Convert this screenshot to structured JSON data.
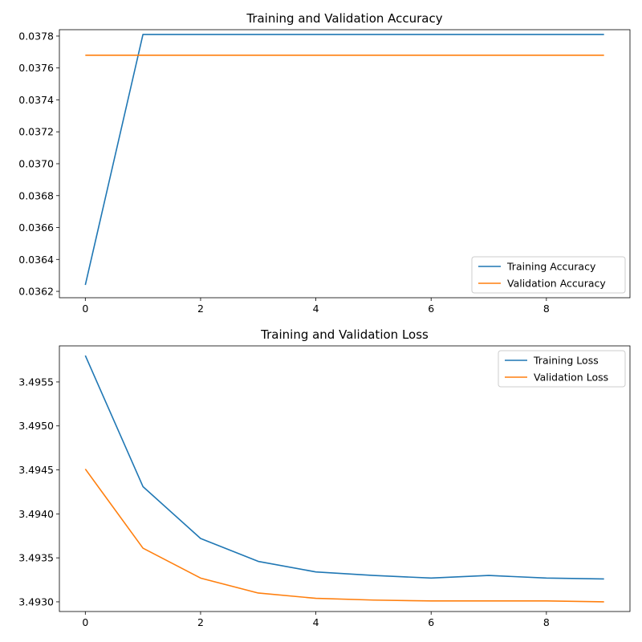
{
  "chart_data": [
    {
      "type": "line",
      "title": "Training and Validation Accuracy",
      "xlabel": "",
      "ylabel": "",
      "xlim": [
        -0.45,
        9.45
      ],
      "ylim": [
        0.03616,
        0.03784
      ],
      "x_ticks": [
        0,
        2,
        4,
        6,
        8
      ],
      "x_tick_labels": [
        "0",
        "2",
        "4",
        "6",
        "8"
      ],
      "y_ticks": [
        0.0362,
        0.0364,
        0.0366,
        0.0368,
        0.037,
        0.0372,
        0.0374,
        0.0376,
        0.0378
      ],
      "y_tick_labels": [
        "0.0362",
        "0.0364",
        "0.0366",
        "0.0368",
        "0.0370",
        "0.0372",
        "0.0374",
        "0.0376",
        "0.0378"
      ],
      "x": [
        0,
        1,
        2,
        3,
        4,
        5,
        6,
        7,
        8,
        9
      ],
      "series": [
        {
          "name": "Training Accuracy",
          "color": "#1f77b4",
          "values": [
            0.03624,
            0.03781,
            0.03781,
            0.03781,
            0.03781,
            0.03781,
            0.03781,
            0.03781,
            0.03781,
            0.03781
          ]
        },
        {
          "name": "Validation Accuracy",
          "color": "#ff7f0e",
          "values": [
            0.03768,
            0.03768,
            0.03768,
            0.03768,
            0.03768,
            0.03768,
            0.03768,
            0.03768,
            0.03768,
            0.03768
          ]
        }
      ],
      "legend_position": "lower right",
      "grid": false
    },
    {
      "type": "line",
      "title": "Training and Validation Loss",
      "xlabel": "",
      "ylabel": "",
      "xlim": [
        -0.45,
        9.45
      ],
      "ylim": [
        3.49289,
        3.49591
      ],
      "x_ticks": [
        0,
        2,
        4,
        6,
        8
      ],
      "x_tick_labels": [
        "0",
        "2",
        "4",
        "6",
        "8"
      ],
      "y_ticks": [
        3.493,
        3.4935,
        3.494,
        3.4945,
        3.495,
        3.4955
      ],
      "y_tick_labels": [
        "3.4930",
        "3.4935",
        "3.4940",
        "3.4945",
        "3.4950",
        "3.4955"
      ],
      "x": [
        0,
        1,
        2,
        3,
        4,
        5,
        6,
        7,
        8,
        9
      ],
      "series": [
        {
          "name": "Training Loss",
          "color": "#1f77b4",
          "values": [
            3.4958,
            3.49431,
            3.49372,
            3.49346,
            3.49334,
            3.4933,
            3.49327,
            3.4933,
            3.49327,
            3.49326
          ]
        },
        {
          "name": "Validation Loss",
          "color": "#ff7f0e",
          "values": [
            3.49451,
            3.49361,
            3.49327,
            3.4931,
            3.49304,
            3.49302,
            3.49301,
            3.49301,
            3.49301,
            3.493
          ]
        }
      ],
      "legend_position": "upper right",
      "grid": false
    }
  ]
}
